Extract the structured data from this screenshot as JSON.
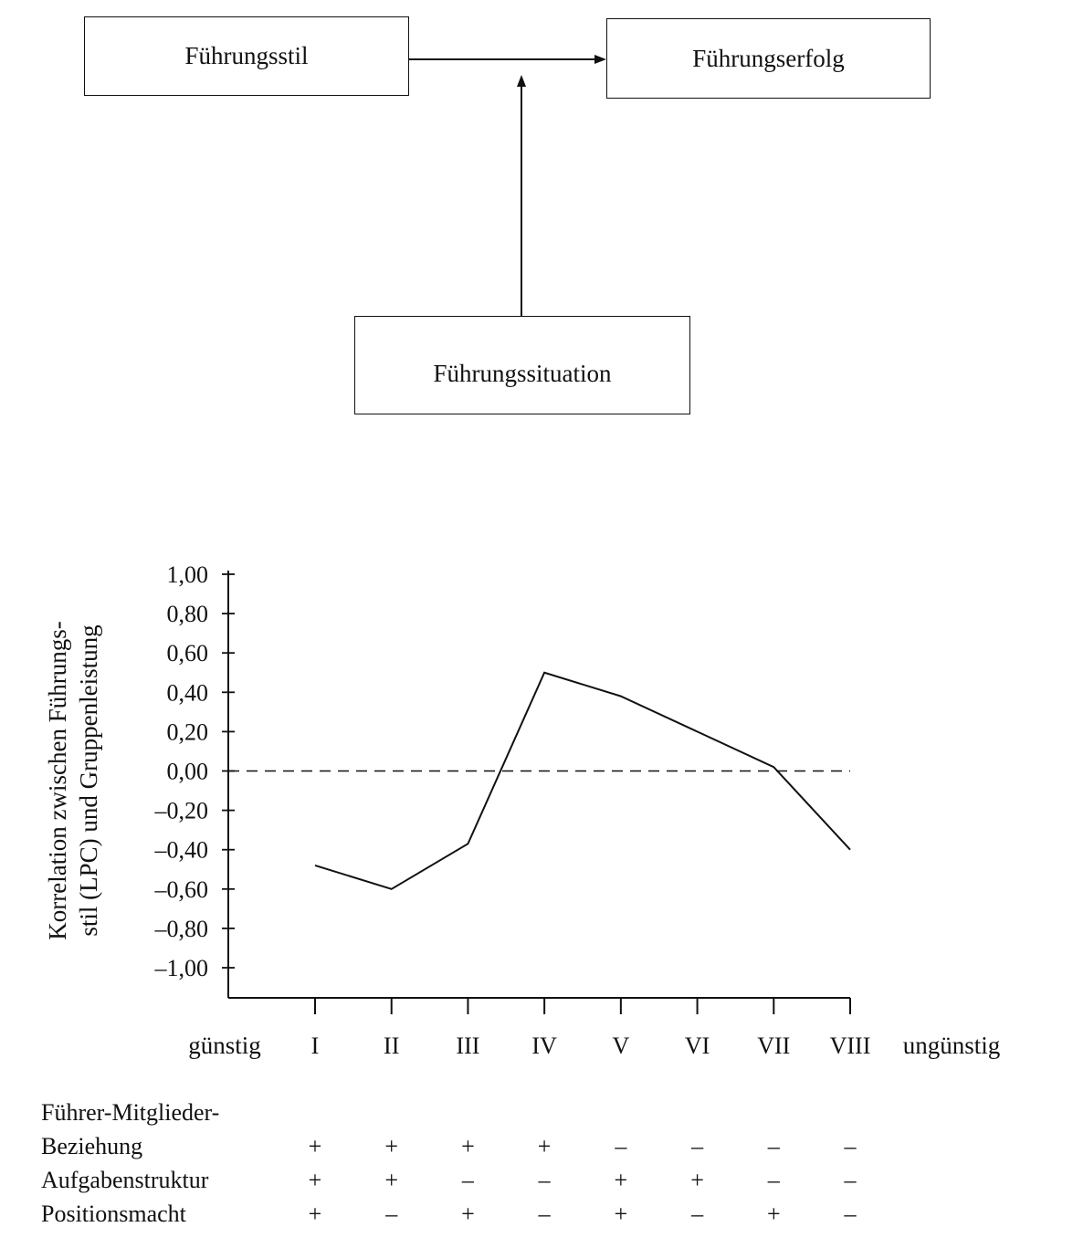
{
  "diagram": {
    "box_style": "Führungsstil",
    "box_success": "Führungserfolg",
    "box_situation": "Führungssituation"
  },
  "chart_data": {
    "type": "line",
    "ylabel_line1": "Korrelation zwischen Führungs-",
    "ylabel_line2": "stil (LPC) und Gruppenleistung",
    "ylim": [
      -1.0,
      1.0
    ],
    "yticks": [
      1.0,
      0.8,
      0.6,
      0.4,
      0.2,
      0.0,
      -0.2,
      -0.4,
      -0.6,
      -0.8,
      -1.0
    ],
    "ytick_labels": [
      "1,00",
      "0,80",
      "0,60",
      "0,40",
      "0,20",
      "0,00",
      "–0,20",
      "–0,40",
      "–0,60",
      "–0,80",
      "–1,00"
    ],
    "categories": [
      "I",
      "II",
      "III",
      "IV",
      "V",
      "VI",
      "VII",
      "VIII"
    ],
    "values": [
      -0.48,
      -0.6,
      -0.37,
      0.5,
      0.38,
      0.2,
      0.02,
      -0.4
    ],
    "reference_line": 0.0,
    "x_left_label": "günstig",
    "x_right_label": "ungünstig",
    "grid": false
  },
  "table": {
    "rows": [
      {
        "label_lines": [
          "Führer-Mitglieder-",
          "Beziehung"
        ],
        "signs": [
          "+",
          "+",
          "+",
          "+",
          "–",
          "–",
          "–",
          "–"
        ]
      },
      {
        "label_lines": [
          "Aufgabenstruktur"
        ],
        "signs": [
          "+",
          "+",
          "–",
          "–",
          "+",
          "+",
          "–",
          "–"
        ]
      },
      {
        "label_lines": [
          "Positionsmacht"
        ],
        "signs": [
          "+",
          "–",
          "+",
          "–",
          "+",
          "–",
          "+",
          "–"
        ]
      }
    ]
  }
}
